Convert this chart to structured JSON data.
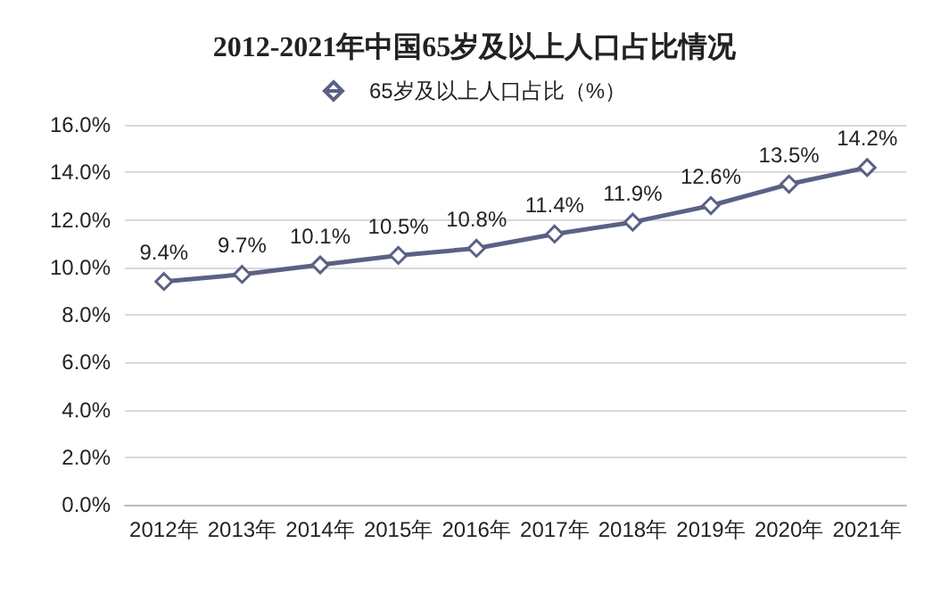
{
  "chart_data": {
    "type": "line",
    "title": "2012-2021年中国65岁及以上人口占比情况",
    "categories": [
      "2012年",
      "2013年",
      "2014年",
      "2015年",
      "2016年",
      "2017年",
      "2018年",
      "2019年",
      "2020年",
      "2021年"
    ],
    "series": [
      {
        "name": "65岁及以上人口占比（%）",
        "color": "#5b6185",
        "values": [
          9.4,
          9.7,
          10.1,
          10.5,
          10.8,
          11.4,
          11.9,
          12.6,
          13.5,
          14.2
        ],
        "value_labels": [
          "9.4%",
          "9.7%",
          "10.1%",
          "10.5%",
          "10.8%",
          "11.4%",
          "11.9%",
          "12.6%",
          "13.5%",
          "14.2%"
        ]
      }
    ],
    "ylim": [
      0,
      16
    ],
    "yticks": [
      {
        "value": 0,
        "label": "0.0%"
      },
      {
        "value": 2,
        "label": "2.0%"
      },
      {
        "value": 4,
        "label": "4.0%"
      },
      {
        "value": 6,
        "label": "6.0%"
      },
      {
        "value": 8,
        "label": "8.0%"
      },
      {
        "value": 10,
        "label": "10.0%"
      },
      {
        "value": 12,
        "label": "12.0%"
      },
      {
        "value": 14,
        "label": "14.0%"
      },
      {
        "value": 16,
        "label": "16.0%"
      }
    ],
    "grid": "y",
    "legend": "top",
    "marker": "diamond",
    "line_style": "solid"
  }
}
